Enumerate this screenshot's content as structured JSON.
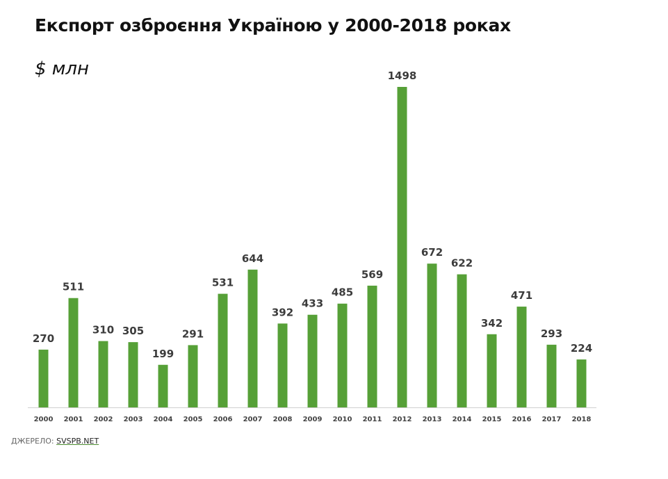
{
  "chart_data": {
    "type": "bar",
    "title": "Експорт озброєння Україною у 2000-2018 роках",
    "subtitle": "$ млн",
    "categories": [
      "2000",
      "2001",
      "2002",
      "2003",
      "2004",
      "2005",
      "2006",
      "2007",
      "2008",
      "2009",
      "2010",
      "2011",
      "2012",
      "2013",
      "2014",
      "2015",
      "2016",
      "2017",
      "2018"
    ],
    "values": [
      270,
      511,
      310,
      305,
      199,
      291,
      531,
      644,
      392,
      433,
      485,
      569,
      1498,
      672,
      622,
      342,
      471,
      293,
      224
    ],
    "ylim": [
      0,
      1500
    ],
    "grid": false,
    "legend": "none",
    "bar_color": "#56a037"
  },
  "source": {
    "label": "ДЖЕРЕЛО:",
    "link": "SVSPB.NET"
  }
}
